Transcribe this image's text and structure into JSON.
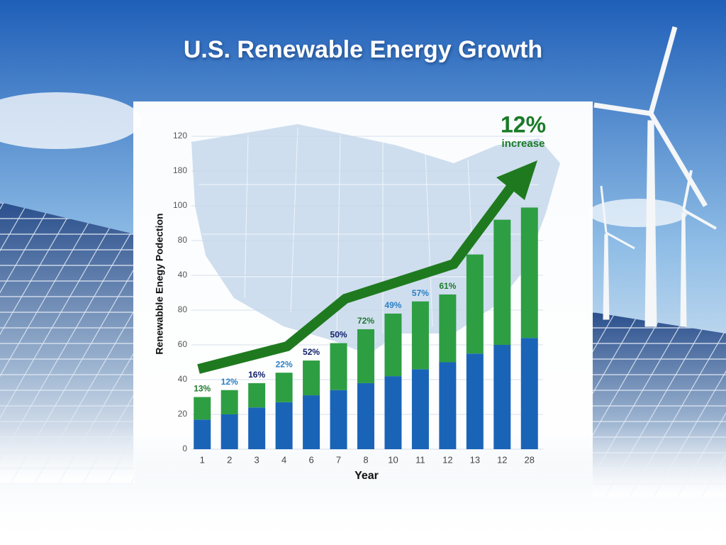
{
  "chart_data": {
    "type": "stacked_bar",
    "title": "U.S. Renewable Energy Growth",
    "y_label": "Renewabble Enegy Podection",
    "x_label": "Year",
    "annotation": {
      "value": "12%",
      "text": "increase"
    },
    "categories": [
      "1",
      "2",
      "3",
      "4",
      "6",
      "7",
      "8",
      "10",
      "11",
      "12",
      "13",
      "12",
      "28"
    ],
    "series": [
      {
        "color": "#1a64b8",
        "values": [
          17,
          20,
          24,
          27,
          31,
          34,
          38,
          42,
          46,
          50,
          55,
          60,
          64
        ]
      },
      {
        "color": "#2e9e43",
        "values": [
          13,
          14,
          14,
          17,
          20,
          27,
          31,
          36,
          39,
          39,
          57,
          72,
          75
        ]
      }
    ],
    "bar_labels": [
      "13%",
      "12%",
      "16%",
      "22%",
      "52%",
      "50%",
      "72%",
      "49%",
      "57%",
      "61%",
      null,
      null,
      null
    ],
    "bar_label_colors": [
      "#1f7a2e",
      "#2a7fc4",
      "#10206a",
      "#2a7fc4",
      "#10206a",
      "#10206a",
      "#1f7a2e",
      "#2a7fc4",
      "#2a7fc4",
      "#1f7a2e",
      null,
      null,
      null
    ],
    "ylim": [
      0,
      180
    ],
    "yticks": [
      0,
      20,
      40,
      60,
      80,
      {
        "value": 100,
        "label": "40"
      },
      {
        "value": 120,
        "label": "80"
      },
      {
        "value": 140,
        "label": "100"
      },
      {
        "value": 160,
        "label": "180"
      },
      {
        "value": 180,
        "label": "120"
      }
    ],
    "grid": true
  }
}
